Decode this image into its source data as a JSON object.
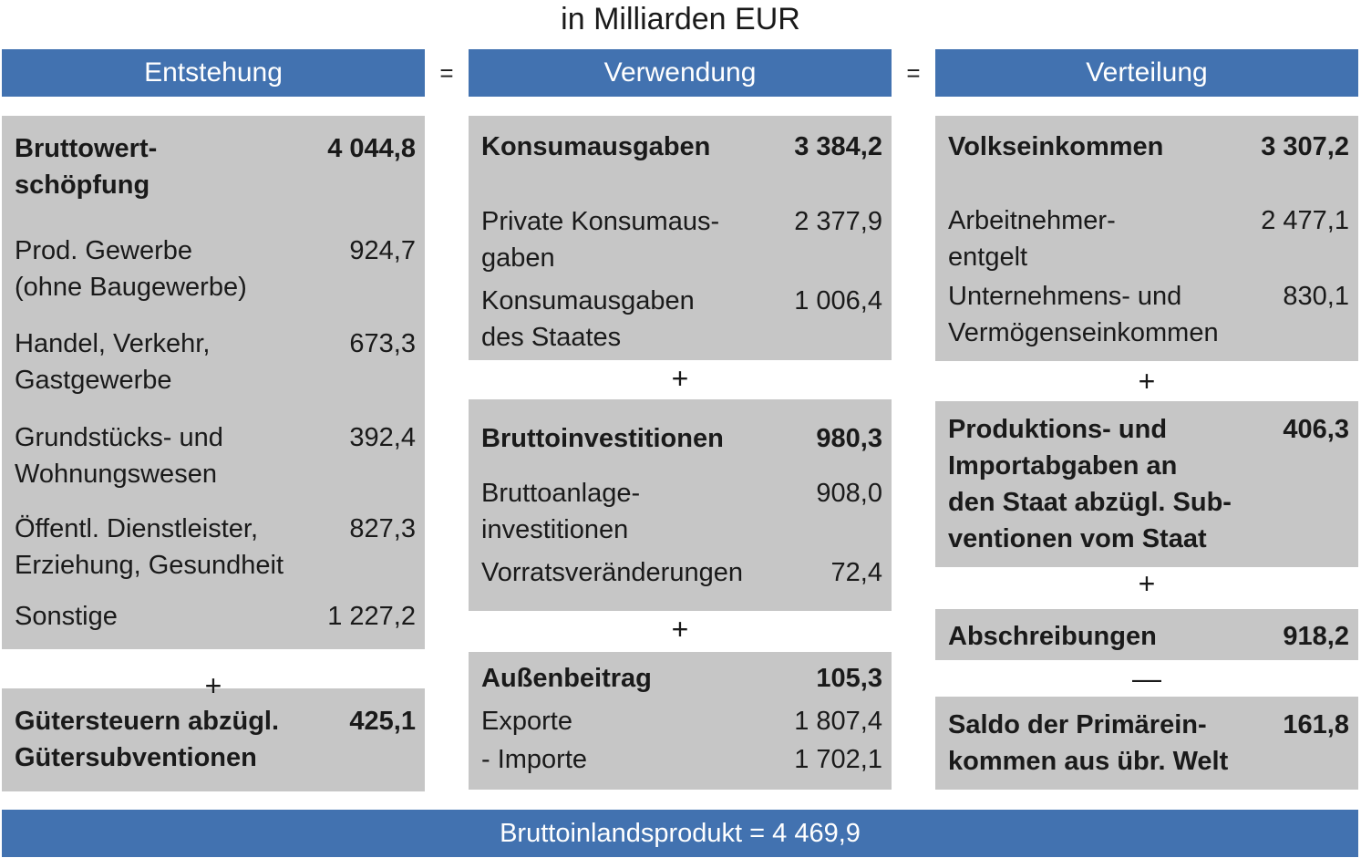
{
  "title": "in Milliarden EUR",
  "equals": "=",
  "plus": "+",
  "minus": "—",
  "colors": {
    "header": "#4272b0",
    "box": "#c6c6c6"
  },
  "columns": [
    {
      "header": "Entstehung",
      "boxes": [
        {
          "title": {
            "label": "Bruttowert-\nschöpfung",
            "value": "4 044,8"
          },
          "items": [
            {
              "label": "Prod. Gewerbe\n(ohne Baugewerbe)",
              "value": "924,7"
            },
            {
              "label": "Handel, Verkehr,\nGastgewerbe",
              "value": "673,3"
            },
            {
              "label": "Grundstücks- und\nWohnungswesen",
              "value": "392,4"
            },
            {
              "label": "Öffentl. Dienstleister,\nErziehung, Gesundheit",
              "value": "827,3"
            },
            {
              "label": "Sonstige",
              "value": "1 227,2"
            }
          ]
        },
        {
          "title": {
            "label": "Gütersteuern abzügl.\nGütersubventionen",
            "value": "425,1"
          }
        }
      ]
    },
    {
      "header": "Verwendung",
      "boxes": [
        {
          "title": {
            "label": "Konsumausgaben",
            "value": "3 384,2"
          },
          "items": [
            {
              "label": "Private Konsumaus-\ngaben",
              "value": "2 377,9"
            },
            {
              "label": "Konsumausgaben\ndes Staates",
              "value": "1 006,4"
            }
          ]
        },
        {
          "title": {
            "label": "Bruttoinvestitionen",
            "value": "980,3"
          },
          "items": [
            {
              "label": "Bruttoanlage-\ninvestitionen",
              "value": "908,0"
            },
            {
              "label": "Vorratsveränderungen",
              "value": "72,4"
            }
          ]
        },
        {
          "title": {
            "label": "Außenbeitrag",
            "value": "105,3"
          },
          "items": [
            {
              "label": "Exporte",
              "value": "1 807,4"
            },
            {
              "label": "- Importe",
              "value": "1 702,1"
            }
          ]
        }
      ]
    },
    {
      "header": "Verteilung",
      "boxes": [
        {
          "title": {
            "label": "Volkseinkommen",
            "value": "3 307,2"
          },
          "items": [
            {
              "label": "Arbeitnehmer-\nentgelt",
              "value": "2 477,1"
            },
            {
              "label": "Unternehmens- und\nVermögenseinkommen",
              "value": "830,1"
            }
          ]
        },
        {
          "title": {
            "label": "Produktions- und\nImportabgaben an\nden Staat abzügl. Sub-\nventionen vom Staat",
            "value": "406,3"
          }
        },
        {
          "title": {
            "label": "Abschreibungen",
            "value": "918,2"
          }
        },
        {
          "title": {
            "label": "Saldo der Primärein-\nkommen aus übr. Welt",
            "value": "161,8"
          }
        }
      ]
    }
  ],
  "footer": "Bruttoinlandsprodukt = 4 469,9"
}
